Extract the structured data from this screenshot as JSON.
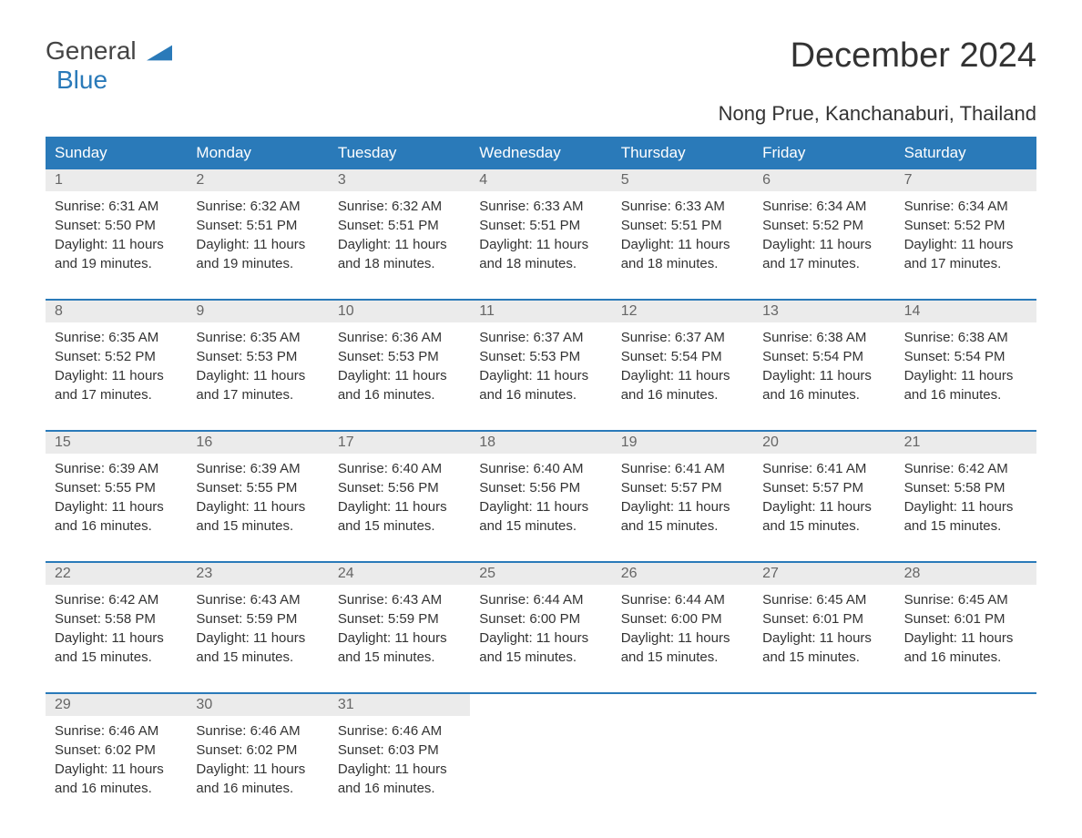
{
  "logo": {
    "general": "General",
    "blue": "Blue"
  },
  "title": "December 2024",
  "location": "Nong Prue, Kanchanaburi, Thailand",
  "colors": {
    "header_bg": "#2a7ab9",
    "header_text": "#ffffff",
    "daynum_bg": "#ebebeb",
    "daynum_text": "#666666",
    "content_text": "#333333",
    "border": "#2a7ab9",
    "logo_gray": "#444444",
    "logo_blue": "#2a7ab9"
  },
  "fonts": {
    "title_size": 38,
    "location_size": 22,
    "header_size": 17,
    "daynum_size": 16,
    "content_size": 15,
    "logo_size": 28
  },
  "day_names": [
    "Sunday",
    "Monday",
    "Tuesday",
    "Wednesday",
    "Thursday",
    "Friday",
    "Saturday"
  ],
  "weeks": [
    [
      {
        "num": "1",
        "sunrise": "Sunrise: 6:31 AM",
        "sunset": "Sunset: 5:50 PM",
        "daylight1": "Daylight: 11 hours",
        "daylight2": "and 19 minutes."
      },
      {
        "num": "2",
        "sunrise": "Sunrise: 6:32 AM",
        "sunset": "Sunset: 5:51 PM",
        "daylight1": "Daylight: 11 hours",
        "daylight2": "and 19 minutes."
      },
      {
        "num": "3",
        "sunrise": "Sunrise: 6:32 AM",
        "sunset": "Sunset: 5:51 PM",
        "daylight1": "Daylight: 11 hours",
        "daylight2": "and 18 minutes."
      },
      {
        "num": "4",
        "sunrise": "Sunrise: 6:33 AM",
        "sunset": "Sunset: 5:51 PM",
        "daylight1": "Daylight: 11 hours",
        "daylight2": "and 18 minutes."
      },
      {
        "num": "5",
        "sunrise": "Sunrise: 6:33 AM",
        "sunset": "Sunset: 5:51 PM",
        "daylight1": "Daylight: 11 hours",
        "daylight2": "and 18 minutes."
      },
      {
        "num": "6",
        "sunrise": "Sunrise: 6:34 AM",
        "sunset": "Sunset: 5:52 PM",
        "daylight1": "Daylight: 11 hours",
        "daylight2": "and 17 minutes."
      },
      {
        "num": "7",
        "sunrise": "Sunrise: 6:34 AM",
        "sunset": "Sunset: 5:52 PM",
        "daylight1": "Daylight: 11 hours",
        "daylight2": "and 17 minutes."
      }
    ],
    [
      {
        "num": "8",
        "sunrise": "Sunrise: 6:35 AM",
        "sunset": "Sunset: 5:52 PM",
        "daylight1": "Daylight: 11 hours",
        "daylight2": "and 17 minutes."
      },
      {
        "num": "9",
        "sunrise": "Sunrise: 6:35 AM",
        "sunset": "Sunset: 5:53 PM",
        "daylight1": "Daylight: 11 hours",
        "daylight2": "and 17 minutes."
      },
      {
        "num": "10",
        "sunrise": "Sunrise: 6:36 AM",
        "sunset": "Sunset: 5:53 PM",
        "daylight1": "Daylight: 11 hours",
        "daylight2": "and 16 minutes."
      },
      {
        "num": "11",
        "sunrise": "Sunrise: 6:37 AM",
        "sunset": "Sunset: 5:53 PM",
        "daylight1": "Daylight: 11 hours",
        "daylight2": "and 16 minutes."
      },
      {
        "num": "12",
        "sunrise": "Sunrise: 6:37 AM",
        "sunset": "Sunset: 5:54 PM",
        "daylight1": "Daylight: 11 hours",
        "daylight2": "and 16 minutes."
      },
      {
        "num": "13",
        "sunrise": "Sunrise: 6:38 AM",
        "sunset": "Sunset: 5:54 PM",
        "daylight1": "Daylight: 11 hours",
        "daylight2": "and 16 minutes."
      },
      {
        "num": "14",
        "sunrise": "Sunrise: 6:38 AM",
        "sunset": "Sunset: 5:54 PM",
        "daylight1": "Daylight: 11 hours",
        "daylight2": "and 16 minutes."
      }
    ],
    [
      {
        "num": "15",
        "sunrise": "Sunrise: 6:39 AM",
        "sunset": "Sunset: 5:55 PM",
        "daylight1": "Daylight: 11 hours",
        "daylight2": "and 16 minutes."
      },
      {
        "num": "16",
        "sunrise": "Sunrise: 6:39 AM",
        "sunset": "Sunset: 5:55 PM",
        "daylight1": "Daylight: 11 hours",
        "daylight2": "and 15 minutes."
      },
      {
        "num": "17",
        "sunrise": "Sunrise: 6:40 AM",
        "sunset": "Sunset: 5:56 PM",
        "daylight1": "Daylight: 11 hours",
        "daylight2": "and 15 minutes."
      },
      {
        "num": "18",
        "sunrise": "Sunrise: 6:40 AM",
        "sunset": "Sunset: 5:56 PM",
        "daylight1": "Daylight: 11 hours",
        "daylight2": "and 15 minutes."
      },
      {
        "num": "19",
        "sunrise": "Sunrise: 6:41 AM",
        "sunset": "Sunset: 5:57 PM",
        "daylight1": "Daylight: 11 hours",
        "daylight2": "and 15 minutes."
      },
      {
        "num": "20",
        "sunrise": "Sunrise: 6:41 AM",
        "sunset": "Sunset: 5:57 PM",
        "daylight1": "Daylight: 11 hours",
        "daylight2": "and 15 minutes."
      },
      {
        "num": "21",
        "sunrise": "Sunrise: 6:42 AM",
        "sunset": "Sunset: 5:58 PM",
        "daylight1": "Daylight: 11 hours",
        "daylight2": "and 15 minutes."
      }
    ],
    [
      {
        "num": "22",
        "sunrise": "Sunrise: 6:42 AM",
        "sunset": "Sunset: 5:58 PM",
        "daylight1": "Daylight: 11 hours",
        "daylight2": "and 15 minutes."
      },
      {
        "num": "23",
        "sunrise": "Sunrise: 6:43 AM",
        "sunset": "Sunset: 5:59 PM",
        "daylight1": "Daylight: 11 hours",
        "daylight2": "and 15 minutes."
      },
      {
        "num": "24",
        "sunrise": "Sunrise: 6:43 AM",
        "sunset": "Sunset: 5:59 PM",
        "daylight1": "Daylight: 11 hours",
        "daylight2": "and 15 minutes."
      },
      {
        "num": "25",
        "sunrise": "Sunrise: 6:44 AM",
        "sunset": "Sunset: 6:00 PM",
        "daylight1": "Daylight: 11 hours",
        "daylight2": "and 15 minutes."
      },
      {
        "num": "26",
        "sunrise": "Sunrise: 6:44 AM",
        "sunset": "Sunset: 6:00 PM",
        "daylight1": "Daylight: 11 hours",
        "daylight2": "and 15 minutes."
      },
      {
        "num": "27",
        "sunrise": "Sunrise: 6:45 AM",
        "sunset": "Sunset: 6:01 PM",
        "daylight1": "Daylight: 11 hours",
        "daylight2": "and 15 minutes."
      },
      {
        "num": "28",
        "sunrise": "Sunrise: 6:45 AM",
        "sunset": "Sunset: 6:01 PM",
        "daylight1": "Daylight: 11 hours",
        "daylight2": "and 16 minutes."
      }
    ],
    [
      {
        "num": "29",
        "sunrise": "Sunrise: 6:46 AM",
        "sunset": "Sunset: 6:02 PM",
        "daylight1": "Daylight: 11 hours",
        "daylight2": "and 16 minutes."
      },
      {
        "num": "30",
        "sunrise": "Sunrise: 6:46 AM",
        "sunset": "Sunset: 6:02 PM",
        "daylight1": "Daylight: 11 hours",
        "daylight2": "and 16 minutes."
      },
      {
        "num": "31",
        "sunrise": "Sunrise: 6:46 AM",
        "sunset": "Sunset: 6:03 PM",
        "daylight1": "Daylight: 11 hours",
        "daylight2": "and 16 minutes."
      },
      null,
      null,
      null,
      null
    ]
  ]
}
